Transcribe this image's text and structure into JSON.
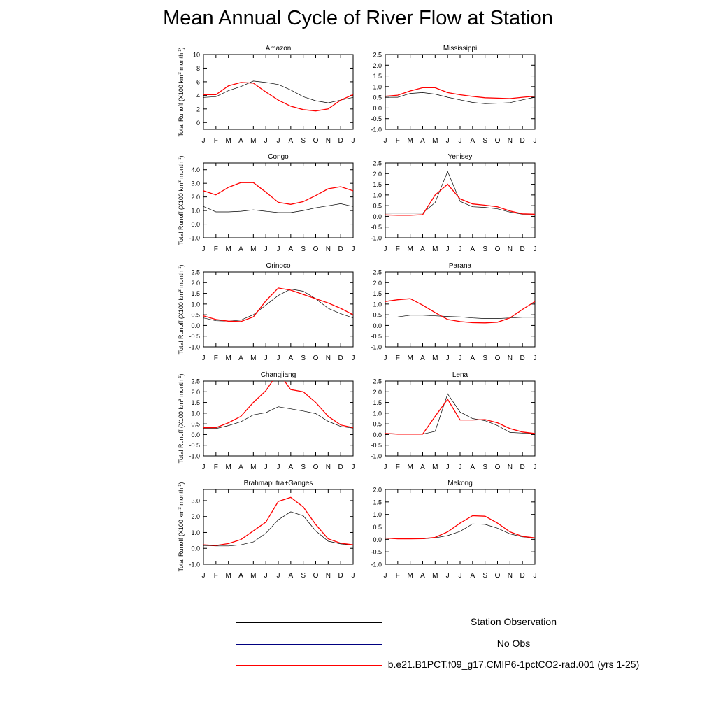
{
  "title": "Mean Annual Cycle of River Flow at Station",
  "ylabel_text": "Total Runoff (X100 km",
  "ylabel_sup": "3",
  "ylabel_text2": " month",
  "ylabel_sup2": "-1",
  "ylabel_end": ")",
  "month_labels": [
    "J",
    "F",
    "M",
    "A",
    "M",
    "J",
    "J",
    "A",
    "S",
    "O",
    "N",
    "D",
    "J"
  ],
  "colors": {
    "obs": "#000000",
    "noobs": "#000080",
    "model": "#ff0000"
  },
  "legend": [
    {
      "label": "Station Observation",
      "color": "#000000"
    },
    {
      "label": "No Obs",
      "color": "#000080"
    },
    {
      "label": "b.e21.B1PCT.f09_g17.CMIP6-1pctCO2-rad.001 (yrs 1-25)",
      "color": "#ff0000"
    }
  ],
  "chart_data": [
    {
      "type": "line",
      "title": "Amazon",
      "ylim": [
        -1,
        10
      ],
      "yticks": [
        "0",
        "2",
        "4",
        "6",
        "8",
        "10"
      ],
      "ytick_values": [
        0,
        2,
        4,
        6,
        8,
        10
      ],
      "series": [
        {
          "name": "Station Observation",
          "values": [
            3.7,
            3.8,
            4.7,
            5.3,
            6.1,
            5.9,
            5.6,
            4.8,
            3.8,
            3.2,
            2.9,
            3.3,
            3.7
          ]
        },
        {
          "name": "b.e21.B1PCT.f09_g17.CMIP6-1pctCO2-rad.001 (yrs 1-25)",
          "values": [
            4.1,
            4.1,
            5.4,
            5.9,
            5.8,
            4.5,
            3.3,
            2.4,
            1.9,
            1.7,
            2.0,
            3.3,
            4.1
          ]
        }
      ]
    },
    {
      "type": "line",
      "title": "Mississippi",
      "ylim": [
        -1,
        2.5
      ],
      "yticks": [
        "-1.0",
        "-0.5",
        "0.0",
        "0.5",
        "1.0",
        "1.5",
        "2.0",
        "2.5"
      ],
      "ytick_values": [
        -1,
        -0.5,
        0,
        0.5,
        1,
        1.5,
        2,
        2.5
      ],
      "series": [
        {
          "name": "Station Observation",
          "values": [
            0.5,
            0.5,
            0.68,
            0.72,
            0.65,
            0.5,
            0.38,
            0.26,
            0.2,
            0.22,
            0.25,
            0.38,
            0.5
          ]
        },
        {
          "name": "b.e21.B1PCT.f09_g17.CMIP6-1pctCO2-rad.001 (yrs 1-25)",
          "values": [
            0.55,
            0.6,
            0.8,
            0.95,
            0.95,
            0.72,
            0.62,
            0.54,
            0.48,
            0.46,
            0.44,
            0.5,
            0.55
          ]
        }
      ]
    },
    {
      "type": "line",
      "title": "Congo",
      "ylim": [
        -1,
        4.5
      ],
      "yticks": [
        "-1.0",
        "0.0",
        "1.0",
        "2.0",
        "3.0",
        "4.0"
      ],
      "ytick_values": [
        -1,
        0,
        1,
        2,
        3,
        4
      ],
      "series": [
        {
          "name": "Station Observation",
          "values": [
            1.3,
            0.9,
            0.9,
            0.95,
            1.05,
            0.95,
            0.85,
            0.85,
            1.0,
            1.2,
            1.35,
            1.5,
            1.3
          ]
        },
        {
          "name": "b.e21.B1PCT.f09_g17.CMIP6-1pctCO2-rad.001 (yrs 1-25)",
          "values": [
            2.45,
            2.15,
            2.7,
            3.05,
            3.05,
            2.35,
            1.6,
            1.45,
            1.65,
            2.1,
            2.6,
            2.75,
            2.45
          ]
        }
      ]
    },
    {
      "type": "line",
      "title": "Yenisey",
      "ylim": [
        -1,
        2.5
      ],
      "yticks": [
        "-1.0",
        "-0.5",
        "0.0",
        "0.5",
        "1.0",
        "1.5",
        "2.0",
        "2.5"
      ],
      "ytick_values": [
        -1,
        -0.5,
        0,
        0.5,
        1,
        1.5,
        2,
        2.5
      ],
      "series": [
        {
          "name": "Station Observation",
          "values": [
            0.15,
            0.15,
            0.15,
            0.15,
            0.65,
            2.1,
            0.7,
            0.45,
            0.42,
            0.35,
            0.2,
            0.1,
            0.1
          ]
        },
        {
          "name": "b.e21.B1PCT.f09_g17.CMIP6-1pctCO2-rad.001 (yrs 1-25)",
          "values": [
            0.07,
            0.05,
            0.05,
            0.08,
            1.0,
            1.5,
            0.82,
            0.58,
            0.52,
            0.45,
            0.25,
            0.12,
            0.1
          ]
        }
      ]
    },
    {
      "type": "line",
      "title": "Orinoco",
      "ylim": [
        -1,
        2.5
      ],
      "yticks": [
        "-1.0",
        "-0.5",
        "0.0",
        "0.5",
        "1.0",
        "1.5",
        "2.0",
        "2.5"
      ],
      "ytick_values": [
        -1,
        -0.5,
        0,
        0.5,
        1,
        1.5,
        2,
        2.5
      ],
      "series": [
        {
          "name": "Station Observation",
          "values": [
            0.35,
            0.22,
            0.2,
            0.25,
            0.5,
            0.95,
            1.4,
            1.7,
            1.6,
            1.25,
            0.8,
            0.55,
            0.35
          ]
        },
        {
          "name": "b.e21.B1PCT.f09_g17.CMIP6-1pctCO2-rad.001 (yrs 1-25)",
          "values": [
            0.45,
            0.28,
            0.2,
            0.18,
            0.4,
            1.15,
            1.75,
            1.65,
            1.45,
            1.25,
            1.05,
            0.8,
            0.5
          ]
        }
      ]
    },
    {
      "type": "line",
      "title": "Parana",
      "ylim": [
        -1,
        2.5
      ],
      "yticks": [
        "-1.0",
        "-0.5",
        "0.0",
        "0.5",
        "1.0",
        "1.5",
        "2.0",
        "2.5"
      ],
      "ytick_values": [
        -1,
        -0.5,
        0,
        0.5,
        1,
        1.5,
        2,
        2.5
      ],
      "series": [
        {
          "name": "Station Observation",
          "values": [
            0.38,
            0.4,
            0.48,
            0.48,
            0.45,
            0.42,
            0.4,
            0.35,
            0.32,
            0.32,
            0.35,
            0.38,
            0.38
          ]
        },
        {
          "name": "b.e21.B1PCT.f09_g17.CMIP6-1pctCO2-rad.001 (yrs 1-25)",
          "values": [
            1.12,
            1.2,
            1.25,
            0.95,
            0.6,
            0.28,
            0.18,
            0.13,
            0.12,
            0.15,
            0.35,
            0.75,
            1.12
          ]
        }
      ]
    },
    {
      "type": "line",
      "title": "Changjiang",
      "ylim": [
        -1,
        2.5
      ],
      "yticks": [
        "-1.0",
        "-0.5",
        "0.0",
        "0.5",
        "1.0",
        "1.5",
        "2.0",
        "2.5"
      ],
      "ytick_values": [
        -1,
        -0.5,
        0,
        0.5,
        1,
        1.5,
        2,
        2.5
      ],
      "series": [
        {
          "name": "Station Observation",
          "values": [
            0.28,
            0.28,
            0.42,
            0.6,
            0.92,
            1.02,
            1.3,
            1.2,
            1.1,
            0.98,
            0.62,
            0.38,
            0.3
          ]
        },
        {
          "name": "b.e21.B1PCT.f09_g17.CMIP6-1pctCO2-rad.001 (yrs 1-25)",
          "values": [
            0.32,
            0.32,
            0.55,
            0.85,
            1.5,
            2.05,
            2.9,
            2.1,
            2.0,
            1.5,
            0.85,
            0.45,
            0.32
          ]
        }
      ]
    },
    {
      "type": "line",
      "title": "Lena",
      "ylim": [
        -1,
        2.5
      ],
      "yticks": [
        "-1.0",
        "-0.5",
        "0.0",
        "0.5",
        "1.0",
        "1.5",
        "2.0",
        "2.5"
      ],
      "ytick_values": [
        -1,
        -0.5,
        0,
        0.5,
        1,
        1.5,
        2,
        2.5
      ],
      "series": [
        {
          "name": "Station Observation",
          "values": [
            0.05,
            0.03,
            0.02,
            0.02,
            0.15,
            1.9,
            1.05,
            0.75,
            0.65,
            0.42,
            0.1,
            0.07,
            0.05
          ]
        },
        {
          "name": "b.e21.B1PCT.f09_g17.CMIP6-1pctCO2-rad.001 (yrs 1-25)",
          "values": [
            0.05,
            0.02,
            0.02,
            0.02,
            0.85,
            1.65,
            0.68,
            0.68,
            0.7,
            0.55,
            0.28,
            0.12,
            0.05
          ]
        }
      ]
    },
    {
      "type": "line",
      "title": "Brahmaputra+Ganges",
      "ylim": [
        -1,
        3.7
      ],
      "yticks": [
        "-1.0",
        "0.0",
        "1.0",
        "2.0",
        "3.0"
      ],
      "ytick_values": [
        -1,
        0,
        1,
        2,
        3
      ],
      "series": [
        {
          "name": "Station Observation",
          "values": [
            0.18,
            0.15,
            0.15,
            0.22,
            0.4,
            0.95,
            1.8,
            2.3,
            2.05,
            1.1,
            0.45,
            0.28,
            0.2
          ]
        },
        {
          "name": "b.e21.B1PCT.f09_g17.CMIP6-1pctCO2-rad.001 (yrs 1-25)",
          "values": [
            0.22,
            0.18,
            0.3,
            0.55,
            1.1,
            1.65,
            2.95,
            3.2,
            2.6,
            1.5,
            0.6,
            0.32,
            0.22
          ]
        }
      ]
    },
    {
      "type": "line",
      "title": "Mekong",
      "ylim": [
        -1,
        2.0
      ],
      "yticks": [
        "-1.0",
        "-0.5",
        "0.0",
        "0.5",
        "1.0",
        "1.5",
        "2.0"
      ],
      "ytick_values": [
        -1,
        -0.5,
        0,
        0.5,
        1,
        1.5,
        2
      ],
      "series": [
        {
          "name": "Station Observation",
          "values": [
            0.05,
            0.02,
            0.02,
            0.02,
            0.06,
            0.15,
            0.32,
            0.62,
            0.6,
            0.45,
            0.22,
            0.1,
            0.05
          ]
        },
        {
          "name": "b.e21.B1PCT.f09_g17.CMIP6-1pctCO2-rad.001 (yrs 1-25)",
          "values": [
            0.05,
            0.02,
            0.02,
            0.03,
            0.08,
            0.3,
            0.65,
            0.95,
            0.93,
            0.65,
            0.3,
            0.12,
            0.06
          ]
        }
      ]
    }
  ]
}
